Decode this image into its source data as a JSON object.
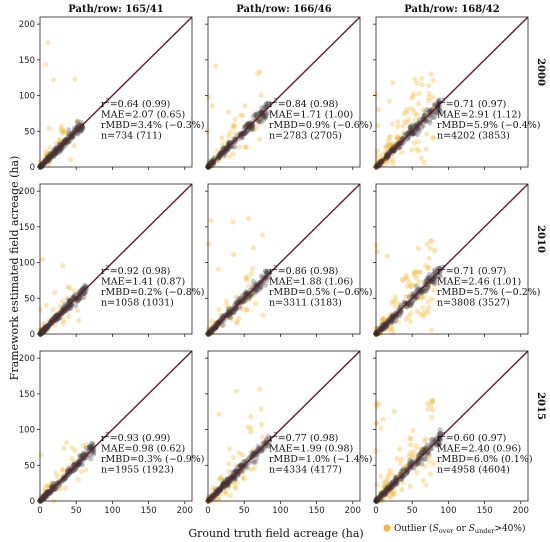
{
  "chart_data": {
    "type": "scatter",
    "xlabel": "Ground truth field acreage (ha)",
    "ylabel": "Framework estimated field acreage (ha)",
    "xlim": [
      0,
      210
    ],
    "ylim": [
      0,
      210
    ],
    "ticks": [
      "0",
      "50",
      "100",
      "150",
      "200"
    ],
    "tick_values": [
      0,
      50,
      100,
      150,
      200
    ],
    "columns": [
      "Path/row: 165/41",
      "Path/row: 166/46",
      "Path/row: 168/42"
    ],
    "rows": [
      "2000",
      "2010",
      "2015"
    ],
    "legend": {
      "label": "Outlier (S_over or S_under>40%)",
      "prefix": "Outlier (",
      "s1": "S",
      "sub1": "over",
      "mid": " or ",
      "s2": "S",
      "sub2": "under",
      "suffix": ">40%)",
      "color": "#f5b731",
      "position": "bottom-right"
    },
    "colors": {
      "inlier": "#3a3a3a",
      "outlier": "#f5b731",
      "line": "#6b1a2a"
    },
    "panels": [
      {
        "row": "2000",
        "col": "165/41",
        "r2": "0.64 (0.99)",
        "mae": "2.07 (0.65)",
        "rmbd": "3.4% (−0.3%)",
        "n": "734 (711)",
        "max_gt": 60,
        "outlier_frac": 0.12,
        "outlier_ymax": 200
      },
      {
        "row": "2000",
        "col": "166/46",
        "r2": "0.84 (0.98)",
        "mae": "1.71 (1.00)",
        "rmbd": "0.9% (−0.6%)",
        "n": "2783 (2705)",
        "max_gt": 85,
        "outlier_frac": 0.15,
        "outlier_ymax": 150
      },
      {
        "row": "2000",
        "col": "168/42",
        "r2": "0.71 (0.97)",
        "mae": "2.91 (1.12)",
        "rmbd": "5.9% (−0.4%)",
        "n": "4202 (3853)",
        "max_gt": 90,
        "outlier_frac": 0.3,
        "outlier_ymax": 130
      },
      {
        "row": "2010",
        "col": "165/41",
        "r2": "0.92 (0.98)",
        "mae": "1.41 (0.87)",
        "rmbd": "0.2% (−0.8%)",
        "n": "1058 (1031)",
        "max_gt": 65,
        "outlier_frac": 0.12,
        "outlier_ymax": 105
      },
      {
        "row": "2010",
        "col": "166/46",
        "r2": "0.86 (0.98)",
        "mae": "1.88 (1.06)",
        "rmbd": "0.5% (−0.6%)",
        "n": "3311 (3183)",
        "max_gt": 85,
        "outlier_frac": 0.15,
        "outlier_ymax": 170
      },
      {
        "row": "2010",
        "col": "168/42",
        "r2": "0.71 (0.97)",
        "mae": "2.46 (1.01)",
        "rmbd": "5.7% (−0.2%)",
        "n": "3808 (3527)",
        "max_gt": 90,
        "outlier_frac": 0.3,
        "outlier_ymax": 130
      },
      {
        "row": "2015",
        "col": "165/41",
        "r2": "0.93 (0.99)",
        "mae": "0.98 (0.62)",
        "rmbd": "0.3% (−0.9%)",
        "n": "1955 (1923)",
        "max_gt": 75,
        "outlier_frac": 0.1,
        "outlier_ymax": 85
      },
      {
        "row": "2015",
        "col": "166/46",
        "r2": "0.77 (0.98)",
        "mae": "1.99 (0.98)",
        "rmbd": "1.0% (−1.4%)",
        "n": "4334 (4177)",
        "max_gt": 85,
        "outlier_frac": 0.18,
        "outlier_ymax": 185
      },
      {
        "row": "2015",
        "col": "168/42",
        "r2": "0.60 (0.97)",
        "mae": "2.40 (0.96)",
        "rmbd": "6.0% (0.1%)",
        "n": "4958 (4604)",
        "max_gt": 90,
        "outlier_frac": 0.3,
        "outlier_ymax": 140
      }
    ]
  }
}
